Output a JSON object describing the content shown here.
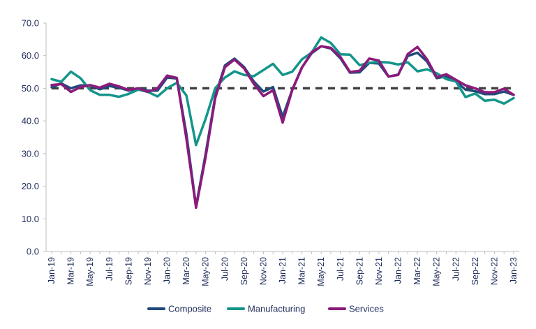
{
  "chart_data": {
    "type": "line",
    "title": "",
    "xlabel": "",
    "ylabel": "",
    "ylim": [
      0,
      70
    ],
    "yticks": [
      "0.0",
      "10.0",
      "20.0",
      "30.0",
      "40.0",
      "50.0",
      "60.0",
      "70.0"
    ],
    "grid": false,
    "legend_position": "bottom",
    "x": [
      "Jan-19",
      "Feb-19",
      "Mar-19",
      "Apr-19",
      "May-19",
      "Jun-19",
      "Jul-19",
      "Aug-19",
      "Sep-19",
      "Oct-19",
      "Nov-19",
      "Dec-19",
      "Jan-20",
      "Feb-20",
      "Mar-20",
      "Apr-20",
      "May-20",
      "Jun-20",
      "Jul-20",
      "Aug-20",
      "Sep-20",
      "Oct-20",
      "Nov-20",
      "Dec-20",
      "Jan-21",
      "Feb-21",
      "Mar-21",
      "Apr-21",
      "May-21",
      "Jun-21",
      "Jul-21",
      "Aug-21",
      "Sep-21",
      "Oct-21",
      "Nov-21",
      "Dec-21",
      "Jan-22",
      "Feb-22",
      "Mar-22",
      "Apr-22",
      "May-22",
      "Jun-22",
      "Jul-22",
      "Aug-22",
      "Sep-22",
      "Oct-22",
      "Nov-22",
      "Dec-22",
      "Jan-23"
    ],
    "x_tick_labels": [
      "Jan-19",
      "Mar-19",
      "May-19",
      "Jul-19",
      "Sep-19",
      "Nov-19",
      "Jan-20",
      "Mar-20",
      "May-20",
      "Jul-20",
      "Sep-20",
      "Nov-20",
      "Jan-21",
      "Mar-21",
      "May-21",
      "Jul-21",
      "Sep-21",
      "Nov-21",
      "Jan-22",
      "Mar-22",
      "May-22",
      "Jul-22",
      "Sep-22",
      "Nov-22",
      "Jan-23"
    ],
    "highlight_tick": "Jul-20",
    "highlight_color": "#7b1f6e",
    "reference_line": {
      "value": 50,
      "color": "#404040"
    },
    "series": [
      {
        "name": "Composite",
        "color": "#1f4a7a",
        "values": [
          50.3,
          51.5,
          50.0,
          50.9,
          50.9,
          49.7,
          50.7,
          50.2,
          49.3,
          50.0,
          49.3,
          49.3,
          53.3,
          53.0,
          36.0,
          13.8,
          30.0,
          47.7,
          57.0,
          59.1,
          56.5,
          52.1,
          49.0,
          50.4,
          41.2,
          49.6,
          56.4,
          60.7,
          62.9,
          62.2,
          59.2,
          54.8,
          54.9,
          57.8,
          57.6,
          53.6,
          54.2,
          59.9,
          60.9,
          58.2,
          53.1,
          53.7,
          52.1,
          49.6,
          49.1,
          48.2,
          48.2,
          49.0,
          48.0
        ]
      },
      {
        "name": "Manufacturing",
        "color": "#13958a",
        "values": [
          52.8,
          52.0,
          55.1,
          53.1,
          49.4,
          48.0,
          48.0,
          47.4,
          48.3,
          49.6,
          48.9,
          47.5,
          50.0,
          51.7,
          47.8,
          32.6,
          40.7,
          50.1,
          53.3,
          55.2,
          54.1,
          53.7,
          55.6,
          57.5,
          54.1,
          55.1,
          58.9,
          60.9,
          65.6,
          63.9,
          60.4,
          60.3,
          57.1,
          57.8,
          58.1,
          57.9,
          57.3,
          58.0,
          55.2,
          55.8,
          54.6,
          52.8,
          52.1,
          47.3,
          48.4,
          46.2,
          46.5,
          45.3,
          47.0
        ]
      },
      {
        "name": "Services",
        "color": "#8c1a7b",
        "values": [
          51.0,
          51.3,
          48.9,
          50.4,
          51.0,
          50.2,
          51.4,
          50.6,
          49.5,
          50.0,
          48.9,
          50.0,
          53.9,
          53.2,
          34.5,
          13.4,
          29.0,
          47.1,
          56.5,
          58.8,
          56.1,
          51.4,
          47.6,
          49.4,
          39.5,
          49.5,
          56.3,
          61.0,
          62.9,
          62.4,
          59.6,
          55.0,
          55.4,
          59.1,
          58.5,
          53.6,
          54.1,
          60.5,
          62.7,
          58.9,
          53.4,
          54.3,
          52.6,
          50.9,
          50.0,
          48.8,
          48.8,
          49.9,
          48.0
        ]
      }
    ]
  }
}
